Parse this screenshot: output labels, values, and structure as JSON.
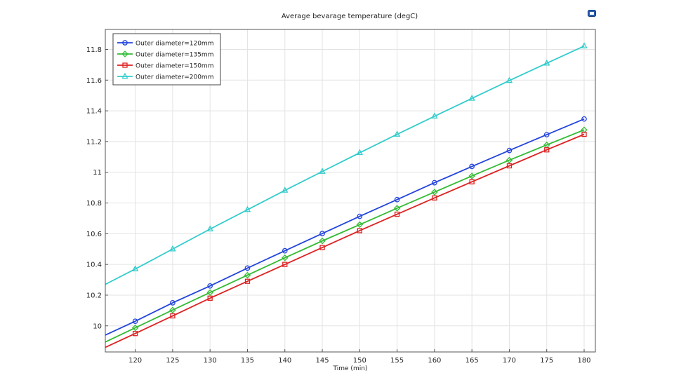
{
  "chart_data": {
    "type": "line",
    "title": "Average bevarage temperature (degC)",
    "xlabel": "Time (min)",
    "ylabel": "",
    "xlim": [
      116,
      181.5
    ],
    "ylim": [
      9.83,
      11.93
    ],
    "xticks": [
      120,
      125,
      130,
      135,
      140,
      145,
      150,
      155,
      160,
      165,
      170,
      175,
      180
    ],
    "yticks": [
      10,
      10.2,
      10.4,
      10.6,
      10.8,
      11,
      11.2,
      11.4,
      11.6,
      11.8
    ],
    "ytick_labels": [
      "10",
      "10.2",
      "10.4",
      "10.6",
      "10.8",
      "11",
      "11.2",
      "11.4",
      "11.6",
      "11.8"
    ],
    "grid": true,
    "legend_position": "top-left",
    "x": [
      120,
      125,
      130,
      135,
      140,
      145,
      150,
      155,
      160,
      165,
      170,
      175,
      180
    ],
    "line_x_start": 116,
    "series": [
      {
        "name": "Outer diameter=120mm",
        "color": "#2244dd",
        "marker": "circle",
        "start": 9.94,
        "values": [
          10.03,
          10.15,
          10.26,
          10.376,
          10.489,
          10.601,
          10.713,
          10.822,
          10.932,
          11.038,
          11.142,
          11.245,
          11.347
        ]
      },
      {
        "name": "Outer diameter=135mm",
        "color": "#33bb33",
        "marker": "diamond",
        "start": 9.895,
        "values": [
          9.987,
          10.103,
          10.217,
          10.33,
          10.443,
          10.553,
          10.659,
          10.766,
          10.871,
          10.976,
          11.079,
          11.178,
          11.276
        ]
      },
      {
        "name": "Outer diameter=150mm",
        "color": "#dd2222",
        "marker": "square",
        "start": 9.86,
        "values": [
          9.95,
          10.065,
          10.18,
          10.29,
          10.4,
          10.51,
          10.62,
          10.727,
          10.833,
          10.938,
          11.042,
          11.146,
          11.247
        ]
      },
      {
        "name": "Outer diameter=200mm",
        "color": "#33cccc",
        "marker": "triangle",
        "start": 10.27,
        "values": [
          10.37,
          10.5,
          10.63,
          10.756,
          10.882,
          11.005,
          11.127,
          11.247,
          11.365,
          11.481,
          11.597,
          11.71,
          11.822
        ]
      }
    ]
  },
  "toolbar": {
    "icon": "image-icon"
  }
}
